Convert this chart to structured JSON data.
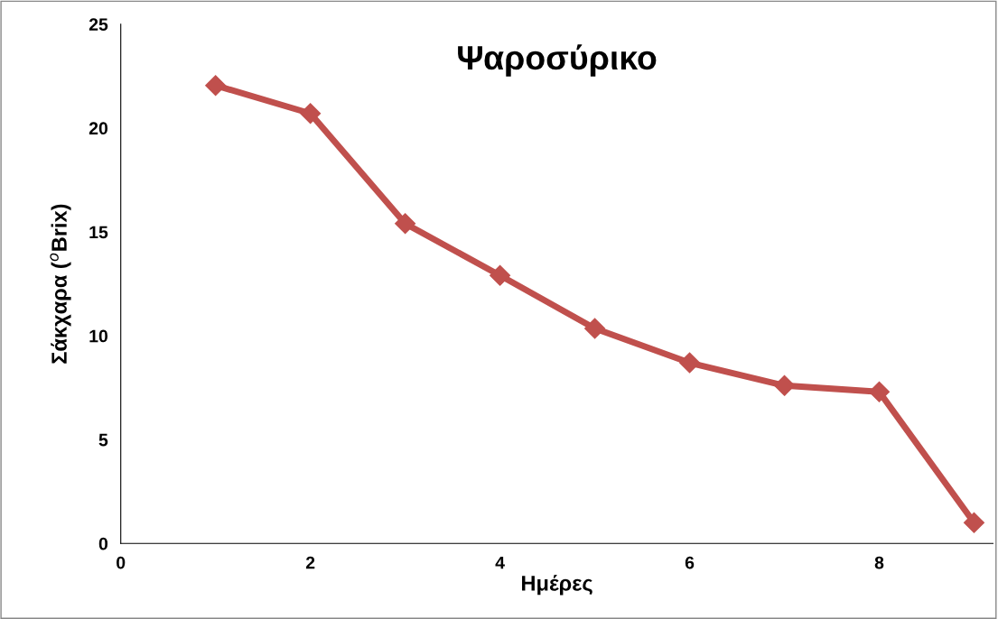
{
  "chart_data": {
    "type": "line",
    "title": "Ψαροσύρικο",
    "xlabel": "Ημέρες",
    "ylabel": "Σάκχαρα ($^{o}$Brix)",
    "x": [
      1,
      2,
      3,
      4,
      5,
      6,
      7,
      8,
      9
    ],
    "series": [
      {
        "color": "#c0504d",
        "values": [
          22.05,
          20.7,
          15.4,
          12.9,
          10.35,
          8.7,
          7.6,
          7.3,
          1.0
        ]
      }
    ],
    "xlim": [
      0,
      9.2
    ],
    "xticks": [
      0,
      2,
      4,
      6,
      8
    ],
    "ylim": [
      0,
      25
    ],
    "yticks": [
      0,
      5,
      10,
      15,
      20,
      25
    ],
    "grid": false,
    "legend": false,
    "marker": "diamond",
    "line_style": "solid"
  }
}
